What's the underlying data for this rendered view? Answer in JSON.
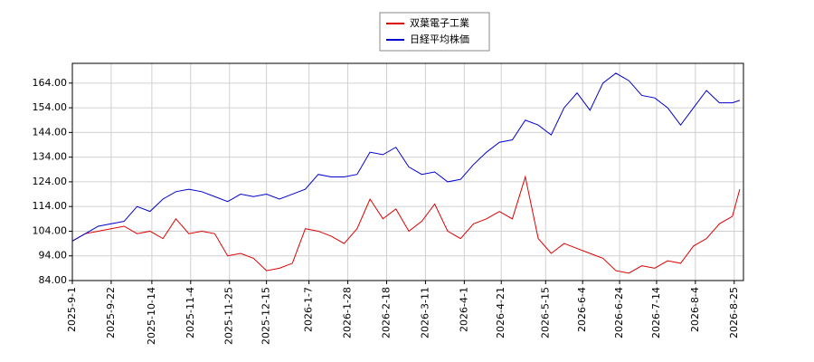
{
  "chart_data": {
    "type": "line",
    "x": [
      "2025-9-1",
      "2025-9-8",
      "2025-9-15",
      "2025-9-22",
      "2025-9-29",
      "2025-10-6",
      "2025-10-13",
      "2025-10-20",
      "2025-10-27",
      "2025-11-3",
      "2025-11-10",
      "2025-11-17",
      "2025-11-24",
      "2025-12-1",
      "2025-12-8",
      "2025-12-15",
      "2025-12-22",
      "2025-12-29",
      "2026-1-5",
      "2026-1-12",
      "2026-1-19",
      "2026-1-26",
      "2026-2-2",
      "2026-2-9",
      "2026-2-16",
      "2026-2-23",
      "2026-3-2",
      "2026-3-9",
      "2026-3-16",
      "2026-3-23",
      "2026-3-30",
      "2026-4-6",
      "2026-4-13",
      "2026-4-20",
      "2026-4-27",
      "2026-5-4",
      "2026-5-11",
      "2026-5-18",
      "2026-5-25",
      "2026-6-1",
      "2026-6-8",
      "2026-6-15",
      "2026-6-22",
      "2026-6-29",
      "2026-7-6",
      "2026-7-13",
      "2026-7-20",
      "2026-7-27",
      "2026-8-3",
      "2026-8-10",
      "2026-8-17",
      "2026-8-24",
      "2026-8-28"
    ],
    "series": [
      {
        "name": "双葉電子工業",
        "color": "#dd0000",
        "values": [
          100,
          103,
          104,
          105,
          106,
          103,
          104,
          101,
          109,
          103,
          104,
          103,
          94,
          95,
          93,
          88,
          89,
          91,
          105,
          104,
          102,
          99,
          105,
          117,
          109,
          113,
          104,
          108,
          115,
          104,
          101,
          107,
          109,
          112,
          109,
          126,
          101,
          95,
          99,
          97,
          95,
          93,
          88,
          87,
          90,
          89,
          92,
          91,
          98,
          101,
          107,
          110,
          121
        ]
      },
      {
        "name": "日経平均株価",
        "color": "#0000cc",
        "values": [
          100,
          103,
          106,
          107,
          108,
          114,
          112,
          117,
          120,
          121,
          120,
          118,
          116,
          119,
          118,
          119,
          117,
          119,
          121,
          127,
          126,
          126,
          127,
          136,
          135,
          138,
          130,
          127,
          128,
          124,
          125,
          131,
          136,
          140,
          141,
          149,
          147,
          143,
          154,
          160,
          153,
          164,
          168,
          165,
          159,
          158,
          154,
          147,
          154,
          161,
          156,
          156,
          157
        ]
      }
    ],
    "xlim": [
      "2025-9-1",
      "2026-8-30"
    ],
    "xticks": [
      "2025-9-1",
      "2025-9-22",
      "2025-10-14",
      "2025-11-4",
      "2025-11-25",
      "2025-12-15",
      "2026-1-7",
      "2026-1-28",
      "2026-2-18",
      "2026-3-11",
      "2026-4-1",
      "2026-4-21",
      "2026-5-15",
      "2026-6-4",
      "2026-6-24",
      "2026-7-14",
      "2026-8-4",
      "2026-8-25"
    ],
    "ylim": [
      84,
      172
    ],
    "yticks": [
      {
        "value": 84,
        "label": "84.00"
      },
      {
        "value": 94,
        "label": "94.00"
      },
      {
        "value": 104,
        "label": "104.00"
      },
      {
        "value": 114,
        "label": "114.00"
      },
      {
        "value": 124,
        "label": "124.00"
      },
      {
        "value": 134,
        "label": "134.00"
      },
      {
        "value": 144,
        "label": "144.00"
      },
      {
        "value": 154,
        "label": "154.00"
      },
      {
        "value": 164,
        "label": "164.00"
      }
    ],
    "grid": true,
    "legend": "top"
  }
}
